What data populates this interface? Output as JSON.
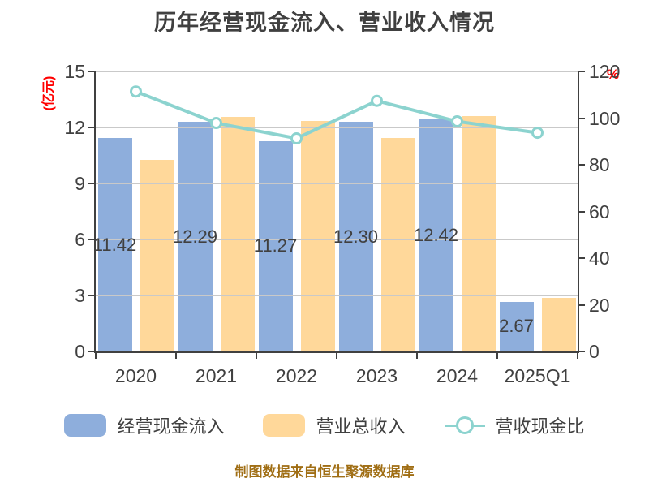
{
  "title": "历年经营现金流入、营业收入情况",
  "footer": "制图数据来自恒生聚源数据库",
  "colors": {
    "bar_cash": "#8eaedc",
    "bar_revenue": "#ffd89a",
    "ratio_line": "#8cd3cf",
    "marker_fill": "#ffffff",
    "grid": "#c9c9c9",
    "axis": "#404040",
    "text": "#404040",
    "unit_text": "#ff0000",
    "footer_text": "#a06e14"
  },
  "axes": {
    "left_unit": "(亿元)",
    "right_unit": "%",
    "left_ticks": [
      0,
      3,
      6,
      9,
      12,
      15
    ],
    "right_ticks": [
      0,
      20,
      40,
      60,
      80,
      100,
      120
    ]
  },
  "legend": {
    "items": [
      {
        "label": "经营现金流入",
        "type": "bar",
        "color": "#8eaedc"
      },
      {
        "label": "营业总收入",
        "type": "bar",
        "color": "#ffd89a"
      },
      {
        "label": "营收现金比",
        "type": "line",
        "color": "#8cd3cf"
      }
    ]
  },
  "chart_data": {
    "type": "bar+line combo",
    "title": "历年经营现金流入、营业收入情况",
    "categories": [
      "2020",
      "2021",
      "2022",
      "2023",
      "2024",
      "2025Q1"
    ],
    "series": [
      {
        "name": "经营现金流入",
        "type": "bar",
        "axis": "left",
        "color": "#8eaedc",
        "values": [
          11.42,
          12.29,
          11.27,
          12.3,
          12.42,
          2.67
        ],
        "data_labels": [
          "11.42",
          "12.29",
          "11.27",
          "12.30",
          "12.42",
          "2.67"
        ]
      },
      {
        "name": "营业总收入",
        "type": "bar",
        "axis": "left",
        "color": "#ffd89a",
        "values": [
          10.25,
          12.55,
          12.35,
          11.45,
          12.6,
          2.85
        ]
      },
      {
        "name": "营收现金比",
        "type": "line",
        "axis": "right",
        "color": "#8cd3cf",
        "values": [
          111.4,
          97.9,
          91.3,
          107.4,
          98.6,
          93.7
        ]
      }
    ],
    "ylabel_left": "(亿元)",
    "ylabel_right": "%",
    "ylim_left": [
      0,
      15
    ],
    "ylim_right": [
      0,
      120
    ],
    "grid": true,
    "legend_position": "bottom"
  }
}
